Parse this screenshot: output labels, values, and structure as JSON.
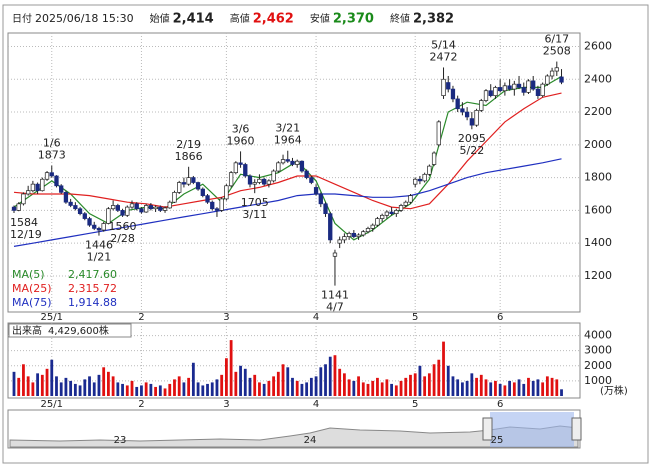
{
  "header": [
    {
      "label": "日付",
      "value": "2025/06/18 15:30"
    },
    {
      "label": "始値",
      "value": "2,414"
    },
    {
      "label": "高値",
      "value": "2,462"
    },
    {
      "label": "安値",
      "value": "2,370"
    },
    {
      "label": "終値",
      "value": "2,382"
    }
  ],
  "chart_data": {
    "type": "candlestick",
    "ylim": [
      980,
      2670
    ],
    "yticks": [
      1200,
      1400,
      1600,
      1800,
      2000,
      2200,
      2400,
      2600
    ],
    "xticks": [
      {
        "value": 8,
        "label": "25/1"
      },
      {
        "value": 27,
        "label": "2"
      },
      {
        "value": 45,
        "label": "3"
      },
      {
        "value": 64,
        "label": "4"
      },
      {
        "value": 85,
        "label": "5"
      },
      {
        "value": 103,
        "label": "6"
      }
    ],
    "up_color": "#ffffff",
    "down_color": "#1a2a80",
    "candles": [
      [
        1620,
        1630,
        1584,
        1600
      ],
      [
        1600,
        1650,
        1595,
        1640
      ],
      [
        1640,
        1710,
        1630,
        1700
      ],
      [
        1700,
        1750,
        1690,
        1720
      ],
      [
        1720,
        1780,
        1710,
        1760
      ],
      [
        1760,
        1770,
        1700,
        1720
      ],
      [
        1720,
        1800,
        1715,
        1790
      ],
      [
        1790,
        1840,
        1780,
        1830
      ],
      [
        1830,
        1873,
        1800,
        1810
      ],
      [
        1810,
        1815,
        1740,
        1750
      ],
      [
        1750,
        1760,
        1700,
        1710
      ],
      [
        1710,
        1720,
        1640,
        1650
      ],
      [
        1650,
        1670,
        1620,
        1630
      ],
      [
        1630,
        1650,
        1600,
        1610
      ],
      [
        1610,
        1620,
        1570,
        1580
      ],
      [
        1580,
        1590,
        1540,
        1550
      ],
      [
        1550,
        1560,
        1500,
        1510
      ],
      [
        1510,
        1530,
        1480,
        1490
      ],
      [
        1490,
        1500,
        1446,
        1480
      ],
      [
        1480,
        1530,
        1470,
        1520
      ],
      [
        1520,
        1620,
        1515,
        1610
      ],
      [
        1610,
        1660,
        1600,
        1630
      ],
      [
        1630,
        1640,
        1590,
        1600
      ],
      [
        1600,
        1610,
        1560,
        1570
      ],
      [
        1570,
        1630,
        1560,
        1620
      ],
      [
        1620,
        1660,
        1610,
        1640
      ],
      [
        1640,
        1650,
        1600,
        1610
      ],
      [
        1610,
        1620,
        1580,
        1590
      ],
      [
        1590,
        1640,
        1585,
        1630
      ],
      [
        1630,
        1645,
        1600,
        1610
      ],
      [
        1610,
        1630,
        1590,
        1620
      ],
      [
        1620,
        1630,
        1590,
        1600
      ],
      [
        1600,
        1625,
        1585,
        1615
      ],
      [
        1615,
        1660,
        1610,
        1650
      ],
      [
        1650,
        1720,
        1645,
        1710
      ],
      [
        1710,
        1780,
        1700,
        1770
      ],
      [
        1770,
        1800,
        1740,
        1760
      ],
      [
        1760,
        1866,
        1750,
        1800
      ],
      [
        1800,
        1810,
        1760,
        1770
      ],
      [
        1770,
        1775,
        1720,
        1730
      ],
      [
        1730,
        1740,
        1680,
        1690
      ],
      [
        1690,
        1700,
        1640,
        1650
      ],
      [
        1650,
        1660,
        1600,
        1610
      ],
      [
        1610,
        1620,
        1560,
        1600
      ],
      [
        1600,
        1680,
        1590,
        1670
      ],
      [
        1670,
        1760,
        1660,
        1750
      ],
      [
        1750,
        1840,
        1740,
        1830
      ],
      [
        1830,
        1900,
        1820,
        1890
      ],
      [
        1890,
        1960,
        1860,
        1880
      ],
      [
        1880,
        1890,
        1800,
        1810
      ],
      [
        1810,
        1820,
        1740,
        1760
      ],
      [
        1760,
        1790,
        1705,
        1770
      ],
      [
        1770,
        1820,
        1760,
        1790
      ],
      [
        1790,
        1800,
        1750,
        1760
      ],
      [
        1760,
        1790,
        1740,
        1780
      ],
      [
        1780,
        1850,
        1770,
        1840
      ],
      [
        1840,
        1900,
        1830,
        1890
      ],
      [
        1890,
        1940,
        1880,
        1910
      ],
      [
        1910,
        1964,
        1890,
        1900
      ],
      [
        1900,
        1920,
        1870,
        1880
      ],
      [
        1880,
        1910,
        1860,
        1900
      ],
      [
        1900,
        1905,
        1830,
        1840
      ],
      [
        1840,
        1850,
        1790,
        1800
      ],
      [
        1800,
        1810,
        1760,
        1770
      ],
      [
        1740,
        1760,
        1690,
        1700
      ],
      [
        1700,
        1710,
        1620,
        1640
      ],
      [
        1640,
        1650,
        1560,
        1580
      ],
      [
        1580,
        1590,
        1400,
        1420
      ],
      [
        1320,
        1360,
        1141,
        1340
      ],
      [
        1400,
        1440,
        1370,
        1420
      ],
      [
        1420,
        1460,
        1400,
        1440
      ],
      [
        1440,
        1470,
        1420,
        1460
      ],
      [
        1460,
        1480,
        1430,
        1440
      ],
      [
        1440,
        1460,
        1420,
        1450
      ],
      [
        1450,
        1480,
        1440,
        1470
      ],
      [
        1470,
        1500,
        1460,
        1490
      ],
      [
        1490,
        1520,
        1470,
        1510
      ],
      [
        1510,
        1560,
        1500,
        1550
      ],
      [
        1550,
        1580,
        1530,
        1570
      ],
      [
        1570,
        1600,
        1550,
        1590
      ],
      [
        1590,
        1620,
        1570,
        1580
      ],
      [
        1580,
        1610,
        1560,
        1600
      ],
      [
        1600,
        1640,
        1590,
        1630
      ],
      [
        1630,
        1660,
        1620,
        1650
      ],
      [
        1650,
        1700,
        1640,
        1690
      ],
      [
        1760,
        1800,
        1740,
        1790
      ],
      [
        1790,
        1810,
        1760,
        1780
      ],
      [
        1780,
        1830,
        1770,
        1820
      ],
      [
        1820,
        1880,
        1810,
        1870
      ],
      [
        1880,
        1960,
        1870,
        1950
      ],
      [
        2000,
        2150,
        1990,
        2140
      ],
      [
        2300,
        2472,
        2280,
        2400
      ],
      [
        2380,
        2420,
        2320,
        2340
      ],
      [
        2340,
        2360,
        2260,
        2280
      ],
      [
        2280,
        2300,
        2200,
        2220
      ],
      [
        2220,
        2260,
        2180,
        2200
      ],
      [
        2200,
        2230,
        2150,
        2170
      ],
      [
        2160,
        2200,
        2095,
        2120
      ],
      [
        2120,
        2220,
        2110,
        2210
      ],
      [
        2210,
        2280,
        2200,
        2270
      ],
      [
        2270,
        2340,
        2260,
        2330
      ],
      [
        2330,
        2370,
        2290,
        2300
      ],
      [
        2300,
        2360,
        2280,
        2350
      ],
      [
        2350,
        2400,
        2320,
        2330
      ],
      [
        2330,
        2380,
        2300,
        2360
      ],
      [
        2360,
        2400,
        2330,
        2340
      ],
      [
        2340,
        2390,
        2300,
        2370
      ],
      [
        2370,
        2420,
        2340,
        2350
      ],
      [
        2350,
        2380,
        2300,
        2320
      ],
      [
        2320,
        2400,
        2310,
        2390
      ],
      [
        2390,
        2420,
        2330,
        2340
      ],
      [
        2340,
        2360,
        2280,
        2300
      ],
      [
        2300,
        2380,
        2290,
        2370
      ],
      [
        2370,
        2430,
        2360,
        2420
      ],
      [
        2420,
        2470,
        2400,
        2450
      ],
      [
        2450,
        2508,
        2420,
        2470
      ],
      [
        2414,
        2462,
        2370,
        2382
      ]
    ],
    "annotations": [
      {
        "date": "12/19",
        "price": 1584,
        "kind": "low"
      },
      {
        "date": "1/6",
        "price": 1873,
        "kind": "high"
      },
      {
        "date": "1/21",
        "price": 1446,
        "kind": "low"
      },
      {
        "date": "2/19",
        "price": 1866,
        "kind": "high"
      },
      {
        "date": "2/28",
        "price": 1560,
        "kind": "low"
      },
      {
        "date": "3/6",
        "price": 1960,
        "kind": "high"
      },
      {
        "date": "3/11",
        "price": 1705,
        "kind": "low"
      },
      {
        "date": "3/21",
        "price": 1964,
        "kind": "high"
      },
      {
        "date": "4/7",
        "price": 1141,
        "kind": "low"
      },
      {
        "date": "5/14",
        "price": 2472,
        "kind": "high"
      },
      {
        "date": "5/22",
        "price": 2095,
        "kind": "low"
      },
      {
        "date": "6/17",
        "price": 2508,
        "kind": "high"
      }
    ],
    "ma": [
      {
        "name": "MA(5)",
        "latest": "2,417.60",
        "color": "#2a8a2a",
        "x": [
          0,
          4,
          8,
          12,
          16,
          20,
          24,
          28,
          32,
          36,
          40,
          44,
          48,
          52,
          56,
          60,
          64,
          68,
          72,
          76,
          80,
          84,
          88,
          92,
          96,
          100,
          104,
          108,
          112,
          116
        ],
        "values": [
          1620,
          1700,
          1780,
          1700,
          1580,
          1520,
          1600,
          1620,
          1610,
          1700,
          1760,
          1650,
          1820,
          1800,
          1830,
          1900,
          1780,
          1520,
          1420,
          1480,
          1570,
          1640,
          1790,
          2200,
          2260,
          2240,
          2330,
          2350,
          2350,
          2417.6
        ]
      },
      {
        "name": "MA(25)",
        "latest": "2,315.72",
        "color": "#e02020",
        "x": [
          0,
          4,
          8,
          12,
          16,
          20,
          24,
          28,
          32,
          36,
          40,
          44,
          48,
          52,
          56,
          60,
          64,
          68,
          72,
          76,
          80,
          84,
          88,
          92,
          96,
          100,
          104,
          108,
          112,
          116
        ],
        "values": [
          1710,
          1700,
          1700,
          1700,
          1690,
          1670,
          1650,
          1640,
          1620,
          1640,
          1660,
          1680,
          1720,
          1740,
          1770,
          1810,
          1810,
          1760,
          1710,
          1660,
          1620,
          1610,
          1640,
          1760,
          1900,
          2020,
          2140,
          2220,
          2290,
          2315.72
        ]
      },
      {
        "name": "MA(75)",
        "latest": "1,914.88",
        "color": "#2030c0",
        "x": [
          0,
          4,
          8,
          12,
          16,
          20,
          24,
          28,
          32,
          36,
          40,
          44,
          48,
          52,
          56,
          60,
          64,
          68,
          72,
          76,
          80,
          84,
          88,
          92,
          96,
          100,
          104,
          108,
          112,
          116
        ],
        "values": [
          1380,
          1400,
          1420,
          1440,
          1460,
          1480,
          1500,
          1520,
          1540,
          1560,
          1580,
          1600,
          1620,
          1640,
          1660,
          1690,
          1700,
          1700,
          1690,
          1680,
          1680,
          1690,
          1720,
          1760,
          1800,
          1830,
          1850,
          1870,
          1890,
          1914.88
        ]
      }
    ],
    "volume": {
      "title": "出来高",
      "latest": "4,429,600株",
      "unit": "(万株)",
      "up_color": "#e01010",
      "down_color": "#1a2a90",
      "ylim": [
        0,
        4700
      ],
      "yticks": [
        1000,
        2000,
        3000,
        4000
      ],
      "values": [
        1600,
        1200,
        2100,
        1300,
        900,
        1500,
        1400,
        1800,
        2400,
        1300,
        900,
        1200,
        1000,
        800,
        700,
        1100,
        1300,
        900,
        1400,
        1900,
        1600,
        1300,
        900,
        800,
        700,
        1000,
        600,
        700,
        900,
        800,
        600,
        700,
        500,
        800,
        1100,
        1300,
        900,
        1200,
        2200,
        900,
        700,
        800,
        900,
        1100,
        1400,
        2500,
        3700,
        1600,
        2000,
        1800,
        1200,
        1400,
        900,
        800,
        1000,
        1300,
        1600,
        2100,
        1900,
        1200,
        1000,
        800,
        900,
        1200,
        1300,
        1900,
        2100,
        2600,
        2700,
        1800,
        1500,
        1100,
        1000,
        1300,
        900,
        800,
        1000,
        1200,
        900,
        1100,
        800,
        700,
        1000,
        1200,
        1400,
        1500,
        2000,
        1300,
        1500,
        2100,
        2400,
        3600,
        2000,
        1300,
        1100,
        900,
        1000,
        1500,
        1200,
        1400,
        1100,
        900,
        1000,
        800,
        700,
        1000,
        900,
        1100,
        800,
        1200,
        1000,
        1100,
        900,
        1300,
        1200,
        1100,
        442.96
      ]
    },
    "navigator": {
      "labels": [
        "23",
        "24",
        "25"
      ]
    }
  }
}
